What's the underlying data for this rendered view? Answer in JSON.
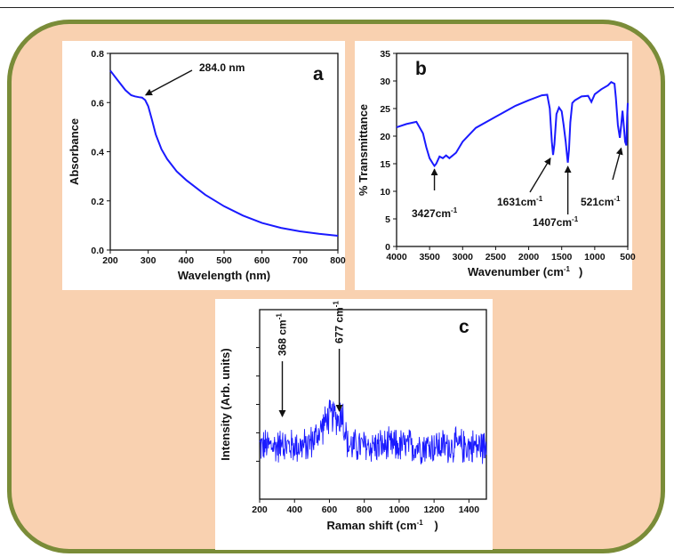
{
  "chart_data": [
    {
      "type": "line",
      "panel_label": "a",
      "xlabel": "Wavelength (nm)",
      "ylabel": "Absorbance",
      "xlim": [
        200,
        800
      ],
      "ylim": [
        0.0,
        0.8
      ],
      "xticks": [
        "200",
        "300",
        "400",
        "500",
        "600",
        "700",
        "800"
      ],
      "yticks": [
        "0.0",
        "0.2",
        "0.4",
        "0.6",
        "0.8"
      ],
      "line_color": "#1a1aff",
      "series": [
        {
          "x": [
            200,
            220,
            240,
            255,
            265,
            275,
            284,
            292,
            300,
            310,
            320,
            335,
            350,
            375,
            400,
            450,
            500,
            550,
            600,
            650,
            700,
            750,
            800
          ],
          "y": [
            0.73,
            0.69,
            0.65,
            0.63,
            0.625,
            0.622,
            0.62,
            0.61,
            0.585,
            0.53,
            0.47,
            0.41,
            0.37,
            0.32,
            0.285,
            0.225,
            0.178,
            0.14,
            0.11,
            0.09,
            0.076,
            0.066,
            0.058
          ]
        }
      ],
      "annotations": [
        {
          "text": "284.0 nm",
          "x": 284,
          "y": 0.62
        }
      ]
    },
    {
      "type": "line",
      "panel_label": "b",
      "xlabel": "Wavenumber (cm",
      "xlabel_sup": "-1",
      "xlabel_end": ")",
      "ylabel": "% Transmittance",
      "xlim": [
        4000,
        500
      ],
      "ylim": [
        0,
        35
      ],
      "xticks": [
        "4000",
        "3500",
        "3000",
        "2500",
        "2000",
        "1500",
        "1000",
        "500"
      ],
      "yticks": [
        "0",
        "5",
        "10",
        "15",
        "20",
        "25",
        "30",
        "35"
      ],
      "line_color": "#1a1aff",
      "series": [
        {
          "x": [
            4000,
            3850,
            3700,
            3600,
            3550,
            3500,
            3450,
            3427,
            3400,
            3350,
            3300,
            3250,
            3200,
            3100,
            3000,
            2800,
            2500,
            2200,
            2000,
            1800,
            1720,
            1680,
            1650,
            1631,
            1610,
            1580,
            1540,
            1500,
            1470,
            1440,
            1420,
            1407,
            1390,
            1370,
            1340,
            1300,
            1200,
            1100,
            1050,
            1000,
            900,
            800,
            750,
            700,
            680,
            650,
            620,
            600,
            580,
            560,
            540,
            521,
            510,
            500
          ],
          "y": [
            21.6,
            22.2,
            22.6,
            20.5,
            18.0,
            16.0,
            15.0,
            14.6,
            15.0,
            16.3,
            16.0,
            16.5,
            16.0,
            17.0,
            19.0,
            21.5,
            23.5,
            25.5,
            26.5,
            27.4,
            27.5,
            25.0,
            19.0,
            16.6,
            18.5,
            24.0,
            25.2,
            24.5,
            22.0,
            19.0,
            16.5,
            15.2,
            17.5,
            22.5,
            26.0,
            26.5,
            27.2,
            27.3,
            26.2,
            27.6,
            28.5,
            29.2,
            29.8,
            29.5,
            27.0,
            22.0,
            19.7,
            22.0,
            24.6,
            22.0,
            19.0,
            18.3,
            23.5,
            26.0
          ]
        }
      ],
      "annotations": [
        {
          "text": "3427cm",
          "sup": "-1",
          "x": 3427
        },
        {
          "text": "1631cm",
          "sup": "-1",
          "x": 1631
        },
        {
          "text": "1407cm",
          "sup": "-1",
          "x": 1407
        },
        {
          "text": "521cm",
          "sup": "-1",
          "x": 521
        }
      ]
    },
    {
      "type": "line",
      "panel_label": "c",
      "xlabel": "Raman shift (cm",
      "xlabel_sup": "-1",
      "xlabel_end": ")",
      "ylabel": "Intensity (Arb. units)",
      "xlim": [
        200,
        1500
      ],
      "xticks": [
        "200",
        "400",
        "600",
        "800",
        "1000",
        "1200",
        "1400"
      ],
      "y_tick_labels_shown": false,
      "line_color": "#1a1aff",
      "series": [
        {
          "description_free": true,
          "base": 0.28,
          "noise": 0.09,
          "hump_center": 620,
          "hump_width": 90,
          "hump_height": 0.16,
          "hump_end": 700
        }
      ],
      "annotations": [
        {
          "text": "368 cm",
          "sup": "-1",
          "x": 368
        },
        {
          "text": "677 cm",
          "sup": "-1",
          "x": 677
        }
      ]
    }
  ]
}
